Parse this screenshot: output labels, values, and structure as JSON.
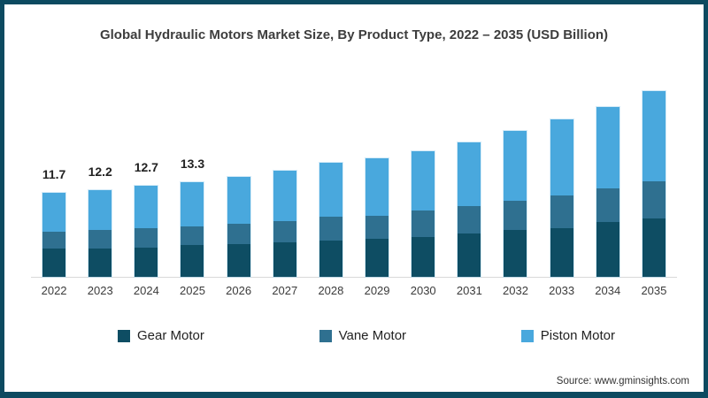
{
  "header": {
    "title": "Global Hydraulic Motors Market Size, By Product Type, 2022 – 2035 (USD Billion)"
  },
  "footer": {
    "source": "Source: www.gminsights.com"
  },
  "frame": {
    "border_color": "#0c4a60",
    "background": "#ffffff",
    "axis_line_color": "#d9d9d9"
  },
  "chart_data": {
    "type": "bar",
    "stacked": true,
    "title": "Global Hydraulic Motors Market Size, By Product Type, 2022 – 2035 (USD Billion)",
    "xlabel": "",
    "ylabel": "USD Billion",
    "ylim": [
      0,
      27
    ],
    "grid": false,
    "legend_position": "bottom",
    "categories": [
      "2022",
      "2023",
      "2024",
      "2025",
      "2026",
      "2027",
      "2028",
      "2029",
      "2030",
      "2031",
      "2032",
      "2033",
      "2034",
      "2035"
    ],
    "series": [
      {
        "name": "Gear Motor",
        "color": "#0e4d63",
        "values": [
          3.9,
          4.0,
          4.1,
          4.5,
          4.6,
          4.8,
          5.0,
          5.3,
          5.5,
          6.0,
          6.5,
          6.8,
          7.6,
          8.1
        ]
      },
      {
        "name": "Vane Motor",
        "color": "#2f7090",
        "values": [
          2.4,
          2.6,
          2.7,
          2.6,
          2.8,
          3.0,
          3.3,
          3.2,
          3.7,
          3.8,
          4.1,
          4.6,
          4.7,
          5.2
        ]
      },
      {
        "name": "Piston Motor",
        "color": "#49a8dd",
        "values": [
          5.4,
          5.6,
          5.9,
          6.2,
          6.6,
          7.0,
          7.5,
          8.0,
          8.3,
          8.9,
          9.7,
          10.6,
          11.4,
          12.6
        ]
      }
    ],
    "totals": [
      11.7,
      12.2,
      12.7,
      13.3,
      14.0,
      14.8,
      15.8,
      16.5,
      17.5,
      18.7,
      20.3,
      22.0,
      23.7,
      25.9
    ],
    "total_labels": [
      "11.7",
      "12.2",
      "12.7",
      "13.3",
      "",
      "",
      "",
      "",
      "",
      "",
      "",
      "",
      "",
      ""
    ]
  },
  "legend": {
    "items": [
      {
        "label": "Gear Motor",
        "color": "#0e4d63"
      },
      {
        "label": "Vane Motor",
        "color": "#2f7090"
      },
      {
        "label": "Piston Motor",
        "color": "#49a8dd"
      }
    ]
  }
}
